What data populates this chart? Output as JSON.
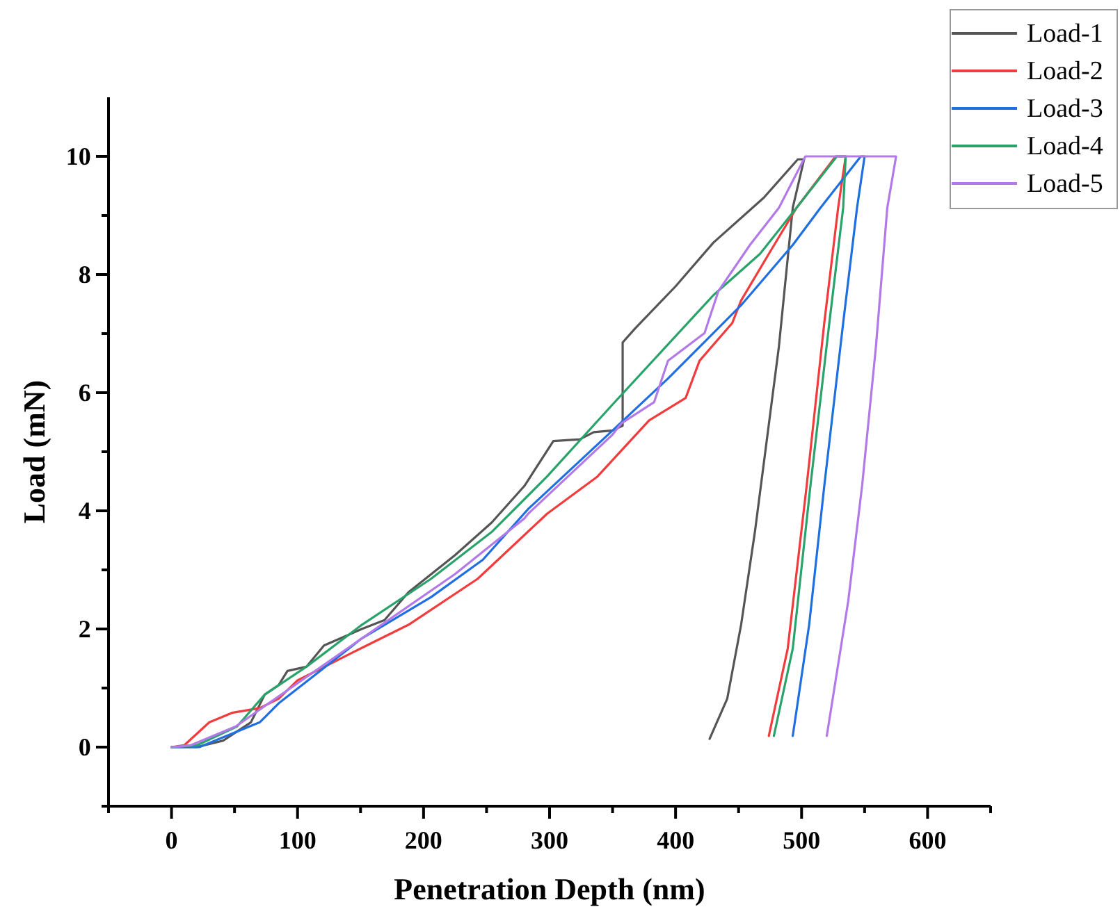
{
  "chart_data": {
    "type": "line",
    "xlabel": "Penetration Depth (nm)",
    "ylabel": "Load (mN)",
    "xlim": [
      -50,
      650
    ],
    "xticks": [
      {
        "value": -50,
        "label": null
      },
      0,
      {
        "value": 50,
        "label": null
      },
      100,
      {
        "value": 150,
        "label": null
      },
      200,
      {
        "value": 250,
        "label": null
      },
      300,
      {
        "value": 350,
        "label": null
      },
      400,
      {
        "value": 450,
        "label": null
      },
      500,
      {
        "value": 550,
        "label": null
      },
      600,
      {
        "value": 650,
        "label": null
      }
    ],
    "ylim": [
      -1,
      11
    ],
    "yticks": [
      {
        "value": -1,
        "label": null
      },
      0,
      {
        "value": 1,
        "label": null
      },
      2,
      {
        "value": 3,
        "label": null
      },
      4,
      {
        "value": 5,
        "label": null
      },
      6,
      {
        "value": 7,
        "label": null
      },
      8,
      {
        "value": 9,
        "label": null
      },
      10
    ],
    "grid": false,
    "legend": "top right",
    "marker": "none",
    "line_style": "solid",
    "series": [
      {
        "name": "Load-1",
        "color": "#555555",
        "x": [
          0,
          20,
          41,
          63,
          74,
          85,
          92,
          107,
          121,
          151,
          169,
          188,
          225,
          254,
          280,
          303,
          324,
          335,
          350,
          358,
          358,
          368,
          400,
          430,
          470,
          497,
          502,
          493,
          482,
          463,
          452,
          441,
          427
        ],
        "values": [
          0,
          0,
          0.11,
          0.42,
          0.89,
          1.05,
          1.29,
          1.36,
          1.72,
          2,
          2.15,
          2.62,
          3.25,
          3.8,
          4.42,
          5.18,
          5.21,
          5.33,
          5.36,
          5.44,
          6.85,
          7.09,
          7.8,
          8.54,
          9.3,
          9.95,
          9.95,
          9.13,
          6.78,
          3.65,
          2.07,
          0.82,
          0.14
        ]
      },
      {
        "name": "Load-2",
        "color": "#f03c3c",
        "x": [
          0,
          10,
          30,
          48,
          70,
          85,
          100,
          151,
          188,
          243,
          298,
          338,
          379,
          408,
          419,
          445,
          452,
          474,
          496,
          527,
          535,
          529,
          518,
          504,
          489,
          474
        ],
        "values": [
          0,
          0.03,
          0.42,
          0.58,
          0.66,
          0.82,
          1.13,
          1.68,
          2.07,
          2.85,
          3.95,
          4.58,
          5.53,
          5.91,
          6.54,
          7.18,
          7.56,
          8.35,
          9.13,
          10,
          10,
          9.13,
          7.18,
          4.42,
          1.67,
          0.19
        ]
      },
      {
        "name": "Load-3",
        "color": "#1f6fe0",
        "x": [
          0,
          22,
          70,
          85,
          151,
          206,
          247,
          283,
          350,
          394,
          452,
          493,
          515,
          547,
          550,
          544,
          533,
          518,
          506,
          493
        ],
        "values": [
          0,
          0,
          0.42,
          0.74,
          1.84,
          2.54,
          3.17,
          4.03,
          5.36,
          6.24,
          7.48,
          8.5,
          9.13,
          10,
          10,
          9.13,
          7.18,
          4.42,
          2.07,
          0.19
        ]
      },
      {
        "name": "Load-4",
        "color": "#2aa36b",
        "x": [
          0,
          20,
          52,
          74,
          107,
          151,
          206,
          254,
          298,
          350,
          430,
          467,
          496,
          528,
          535,
          533,
          522,
          507,
          493,
          478
        ],
        "values": [
          0,
          0.03,
          0.35,
          0.89,
          1.36,
          2.07,
          2.85,
          3.64,
          4.58,
          5.8,
          7.65,
          8.35,
          9.13,
          10,
          10,
          9.13,
          7.18,
          4.42,
          1.67,
          0.19
        ]
      },
      {
        "name": "Load-5",
        "color": "#b27ae8",
        "x": [
          0,
          15,
          51,
          77,
          151,
          225,
          280,
          283,
          350,
          357,
          383,
          394,
          423,
          434,
          459,
          482,
          503,
          575,
          568,
          559,
          548,
          537,
          520
        ],
        "values": [
          0,
          0.03,
          0.35,
          0.74,
          1.84,
          2.93,
          3.87,
          3.95,
          5.29,
          5.48,
          5.84,
          6.54,
          7.01,
          7.72,
          8.5,
          9.13,
          10,
          10,
          9.13,
          6.78,
          4.42,
          2.47,
          0.19
        ]
      }
    ]
  }
}
